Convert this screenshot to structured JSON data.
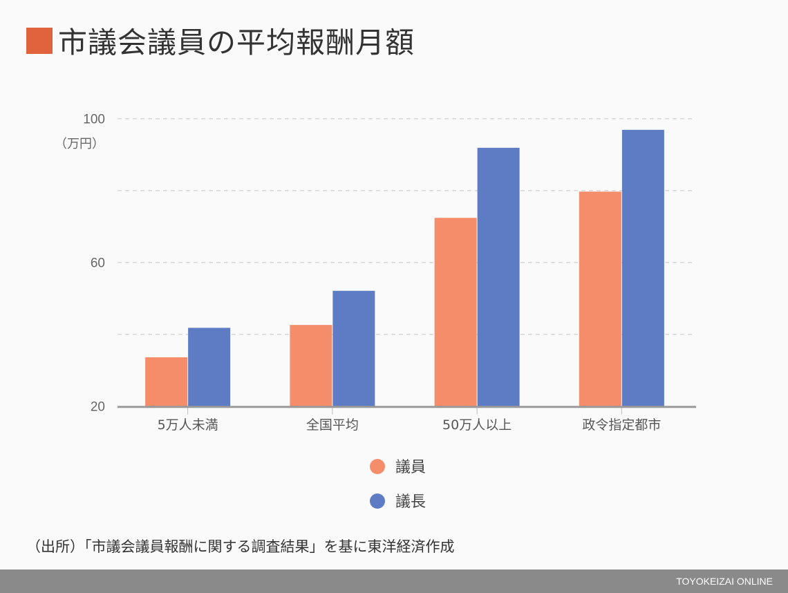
{
  "title": "市議会議員の平均報酬月額",
  "colors": {
    "title_square": "#e0633e",
    "giin": "#f68d6a",
    "gicho": "#5e7cc3",
    "footer": "#8a8a8a"
  },
  "source": "（出所）「市議会議員報酬に関する調査結果」を基に東洋経済作成",
  "brand": "TOYOKEIZAI ONLINE",
  "chart_data": {
    "type": "bar",
    "title": "市議会議員の平均報酬月額",
    "ylabel": "（万円）",
    "ylim": [
      20,
      100
    ],
    "yticks": [
      20,
      60,
      100
    ],
    "gridlines": [
      40,
      60,
      80,
      100
    ],
    "grid": true,
    "legend_position": "bottom",
    "categories": [
      "5万人未満",
      "全国平均",
      "50万人以上",
      "政令指定都市"
    ],
    "series": [
      {
        "name": "議員",
        "color": "#f68d6a",
        "values": [
          33.6,
          42.6,
          72.4,
          79.7
        ]
      },
      {
        "name": "議長",
        "color": "#5e7cc3",
        "values": [
          41.8,
          52.1,
          91.9,
          96.9
        ]
      }
    ]
  }
}
